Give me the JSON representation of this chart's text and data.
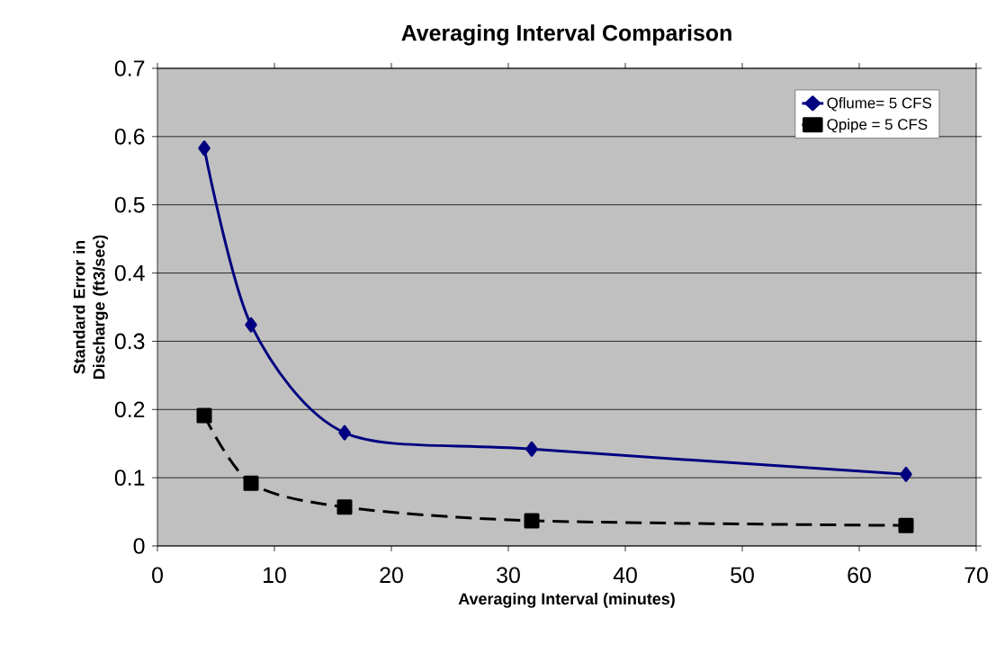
{
  "chart_data": {
    "type": "line",
    "title": "Averaging Interval Comparison",
    "xlabel": "Averaging Interval (minutes)",
    "ylabel": "Standard Error in Discharge (ft3/sec)",
    "series": [
      {
        "name": "Qflume= 5 CFS",
        "color": "#000080",
        "marker": "diamond",
        "line_style": "solid",
        "x": [
          4,
          8,
          16,
          32,
          64
        ],
        "values": [
          0.583,
          0.324,
          0.166,
          0.142,
          0.105
        ]
      },
      {
        "name": "Qpipe = 5 CFS",
        "color": "#000000",
        "marker": "square",
        "line_style": "dashed",
        "x": [
          4,
          8,
          16,
          32,
          64
        ],
        "values": [
          0.191,
          0.092,
          0.057,
          0.037,
          0.03
        ]
      }
    ],
    "xlim": [
      0,
      70
    ],
    "xticks": [
      0,
      10,
      20,
      30,
      40,
      50,
      60,
      70
    ],
    "ylim": [
      0,
      0.7
    ],
    "yticks": [
      0,
      0.1,
      0.2,
      0.3,
      0.4,
      0.5,
      0.6,
      0.7
    ],
    "grid": "y",
    "legend": "top right"
  }
}
